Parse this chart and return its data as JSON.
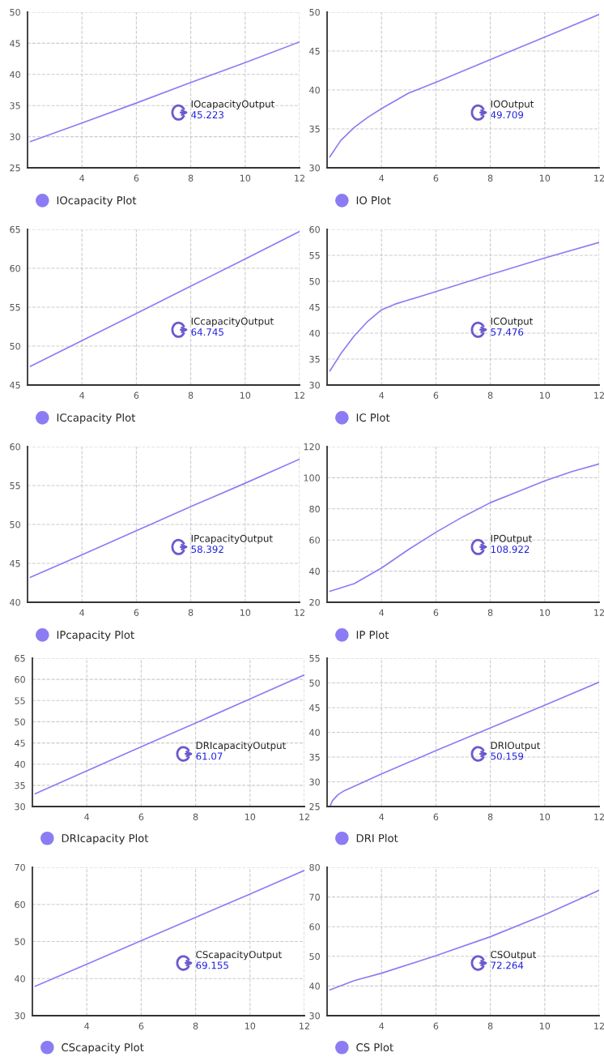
{
  "chart_data": [
    {
      "type": "line",
      "x": [
        2.1,
        4,
        6,
        8,
        10,
        12
      ],
      "series": [
        {
          "name": "IOcapacity Plot",
          "color": "#8c7cf4",
          "values": [
            29.2,
            32.2,
            35.4,
            38.7,
            41.9,
            45.223
          ]
        }
      ],
      "xlim": [
        2,
        12
      ],
      "ylim": [
        25,
        50
      ],
      "xticks": [
        4,
        6,
        8,
        10,
        12
      ],
      "yticks": [
        25,
        30,
        35,
        40,
        45,
        50
      ],
      "grid": true,
      "legend": "bottom left",
      "annotations": [
        "IOcapacityOutput",
        "45.223"
      ]
    },
    {
      "type": "line",
      "x": [
        2.1,
        2.5,
        3,
        3.5,
        4,
        5,
        6,
        8,
        10,
        12
      ],
      "series": [
        {
          "name": "IO Plot",
          "color": "#8c7cf4",
          "values": [
            31.4,
            33.5,
            35.2,
            36.5,
            37.6,
            39.6,
            41.0,
            43.9,
            46.8,
            49.709
          ]
        }
      ],
      "xlim": [
        2,
        12
      ],
      "ylim": [
        30,
        50
      ],
      "xticks": [
        4,
        6,
        8,
        10,
        12
      ],
      "yticks": [
        30,
        35,
        40,
        45,
        50
      ],
      "grid": true,
      "legend": "bottom left",
      "annotations": [
        "IOOutput",
        "49.709"
      ]
    },
    {
      "type": "line",
      "x": [
        2.1,
        4,
        6,
        8,
        10,
        12
      ],
      "series": [
        {
          "name": "ICcapacity Plot",
          "color": "#8c7cf4",
          "values": [
            47.4,
            50.7,
            54.2,
            57.7,
            61.2,
            64.745
          ]
        }
      ],
      "xlim": [
        2,
        12
      ],
      "ylim": [
        45,
        65
      ],
      "xticks": [
        4,
        6,
        8,
        10,
        12
      ],
      "yticks": [
        45,
        50,
        55,
        60,
        65
      ],
      "grid": true,
      "legend": "bottom left",
      "annotations": [
        "ICcapacityOutput",
        "64.745"
      ]
    },
    {
      "type": "line",
      "x": [
        2.1,
        2.5,
        3,
        3.5,
        4,
        4.5,
        5,
        6,
        8,
        10,
        12
      ],
      "series": [
        {
          "name": "IC Plot",
          "color": "#8c7cf4",
          "values": [
            32.7,
            36.0,
            39.5,
            42.3,
            44.5,
            45.6,
            46.4,
            48.0,
            51.3,
            54.5,
            57.476
          ]
        }
      ],
      "xlim": [
        2,
        12
      ],
      "ylim": [
        30,
        60
      ],
      "xticks": [
        4,
        6,
        8,
        10,
        12
      ],
      "yticks": [
        30,
        35,
        40,
        45,
        50,
        55,
        60
      ],
      "grid": true,
      "legend": "bottom left",
      "annotations": [
        "ICOutput",
        "57.476"
      ]
    },
    {
      "type": "line",
      "x": [
        2.1,
        4,
        6,
        8,
        10,
        12
      ],
      "series": [
        {
          "name": "IPcapacity Plot",
          "color": "#8c7cf4",
          "values": [
            43.2,
            46.1,
            49.2,
            52.3,
            55.3,
            58.392
          ]
        }
      ],
      "xlim": [
        2,
        12
      ],
      "ylim": [
        40,
        60
      ],
      "xticks": [
        4,
        6,
        8,
        10,
        12
      ],
      "yticks": [
        40,
        45,
        50,
        55,
        60
      ],
      "grid": true,
      "legend": "bottom left",
      "annotations": [
        "IPcapacityOutput",
        "58.392"
      ]
    },
    {
      "type": "line",
      "x": [
        2.1,
        3,
        4,
        5,
        6,
        7,
        8,
        9,
        10,
        11,
        12
      ],
      "series": [
        {
          "name": "IP Plot",
          "color": "#8c7cf4",
          "values": [
            27,
            32,
            42,
            54,
            65,
            75,
            84,
            91,
            98,
            104,
            108.922
          ]
        }
      ],
      "xlim": [
        2,
        12
      ],
      "ylim": [
        20,
        120
      ],
      "xticks": [
        4,
        6,
        8,
        10,
        12
      ],
      "yticks": [
        20,
        40,
        60,
        80,
        100,
        120
      ],
      "grid": true,
      "legend": "bottom left",
      "annotations": [
        "IPOutput",
        "108.922"
      ]
    },
    {
      "type": "line",
      "x": [
        2.1,
        4,
        6,
        8,
        10,
        12
      ],
      "series": [
        {
          "name": "DRIcapacity Plot",
          "color": "#8c7cf4",
          "values": [
            33.0,
            38.4,
            44.1,
            49.7,
            55.4,
            61.07
          ]
        }
      ],
      "xlim": [
        2,
        12
      ],
      "ylim": [
        30,
        65
      ],
      "xticks": [
        4,
        6,
        8,
        10,
        12
      ],
      "yticks": [
        30,
        35,
        40,
        45,
        50,
        55,
        60,
        65
      ],
      "grid": true,
      "legend": "bottom left",
      "annotations": [
        "DRIcapacityOutput",
        "61.07"
      ]
    },
    {
      "type": "line",
      "x": [
        2.1,
        2.2,
        2.4,
        2.6,
        3,
        4,
        6,
        8,
        10,
        12
      ],
      "series": [
        {
          "name": "DRI Plot",
          "color": "#8c7cf4",
          "values": [
            25,
            26.2,
            27.4,
            28.1,
            29.1,
            31.6,
            36.3,
            40.9,
            45.5,
            50.159
          ]
        }
      ],
      "xlim": [
        2,
        12
      ],
      "ylim": [
        25,
        55
      ],
      "xticks": [
        4,
        6,
        8,
        10,
        12
      ],
      "yticks": [
        25,
        30,
        35,
        40,
        45,
        50,
        55
      ],
      "grid": true,
      "legend": "bottom left",
      "annotations": [
        "DRIOutput",
        "50.159"
      ]
    },
    {
      "type": "line",
      "x": [
        2.1,
        4,
        6,
        8,
        10,
        12
      ],
      "series": [
        {
          "name": "CScapacity Plot",
          "color": "#8c7cf4",
          "values": [
            37.9,
            43.9,
            50.2,
            56.5,
            62.8,
            69.155
          ]
        }
      ],
      "xlim": [
        2,
        12
      ],
      "ylim": [
        30,
        70
      ],
      "xticks": [
        4,
        6,
        8,
        10,
        12
      ],
      "yticks": [
        30,
        40,
        50,
        60,
        70
      ],
      "grid": true,
      "legend": "bottom left",
      "annotations": [
        "CScapacityOutput",
        "69.155"
      ]
    },
    {
      "type": "line",
      "x": [
        2.1,
        3,
        4,
        6,
        8,
        10,
        12
      ],
      "series": [
        {
          "name": "CS Plot",
          "color": "#8c7cf4",
          "values": [
            38.7,
            41.8,
            44.3,
            50.2,
            56.6,
            64.0,
            72.264
          ]
        }
      ],
      "xlim": [
        2,
        12
      ],
      "ylim": [
        30,
        80
      ],
      "xticks": [
        4,
        6,
        8,
        10,
        12
      ],
      "yticks": [
        30,
        40,
        50,
        60,
        70,
        80
      ],
      "grid": true,
      "legend": "bottom left",
      "annotations": [
        "CSOutput",
        "72.264"
      ]
    }
  ]
}
